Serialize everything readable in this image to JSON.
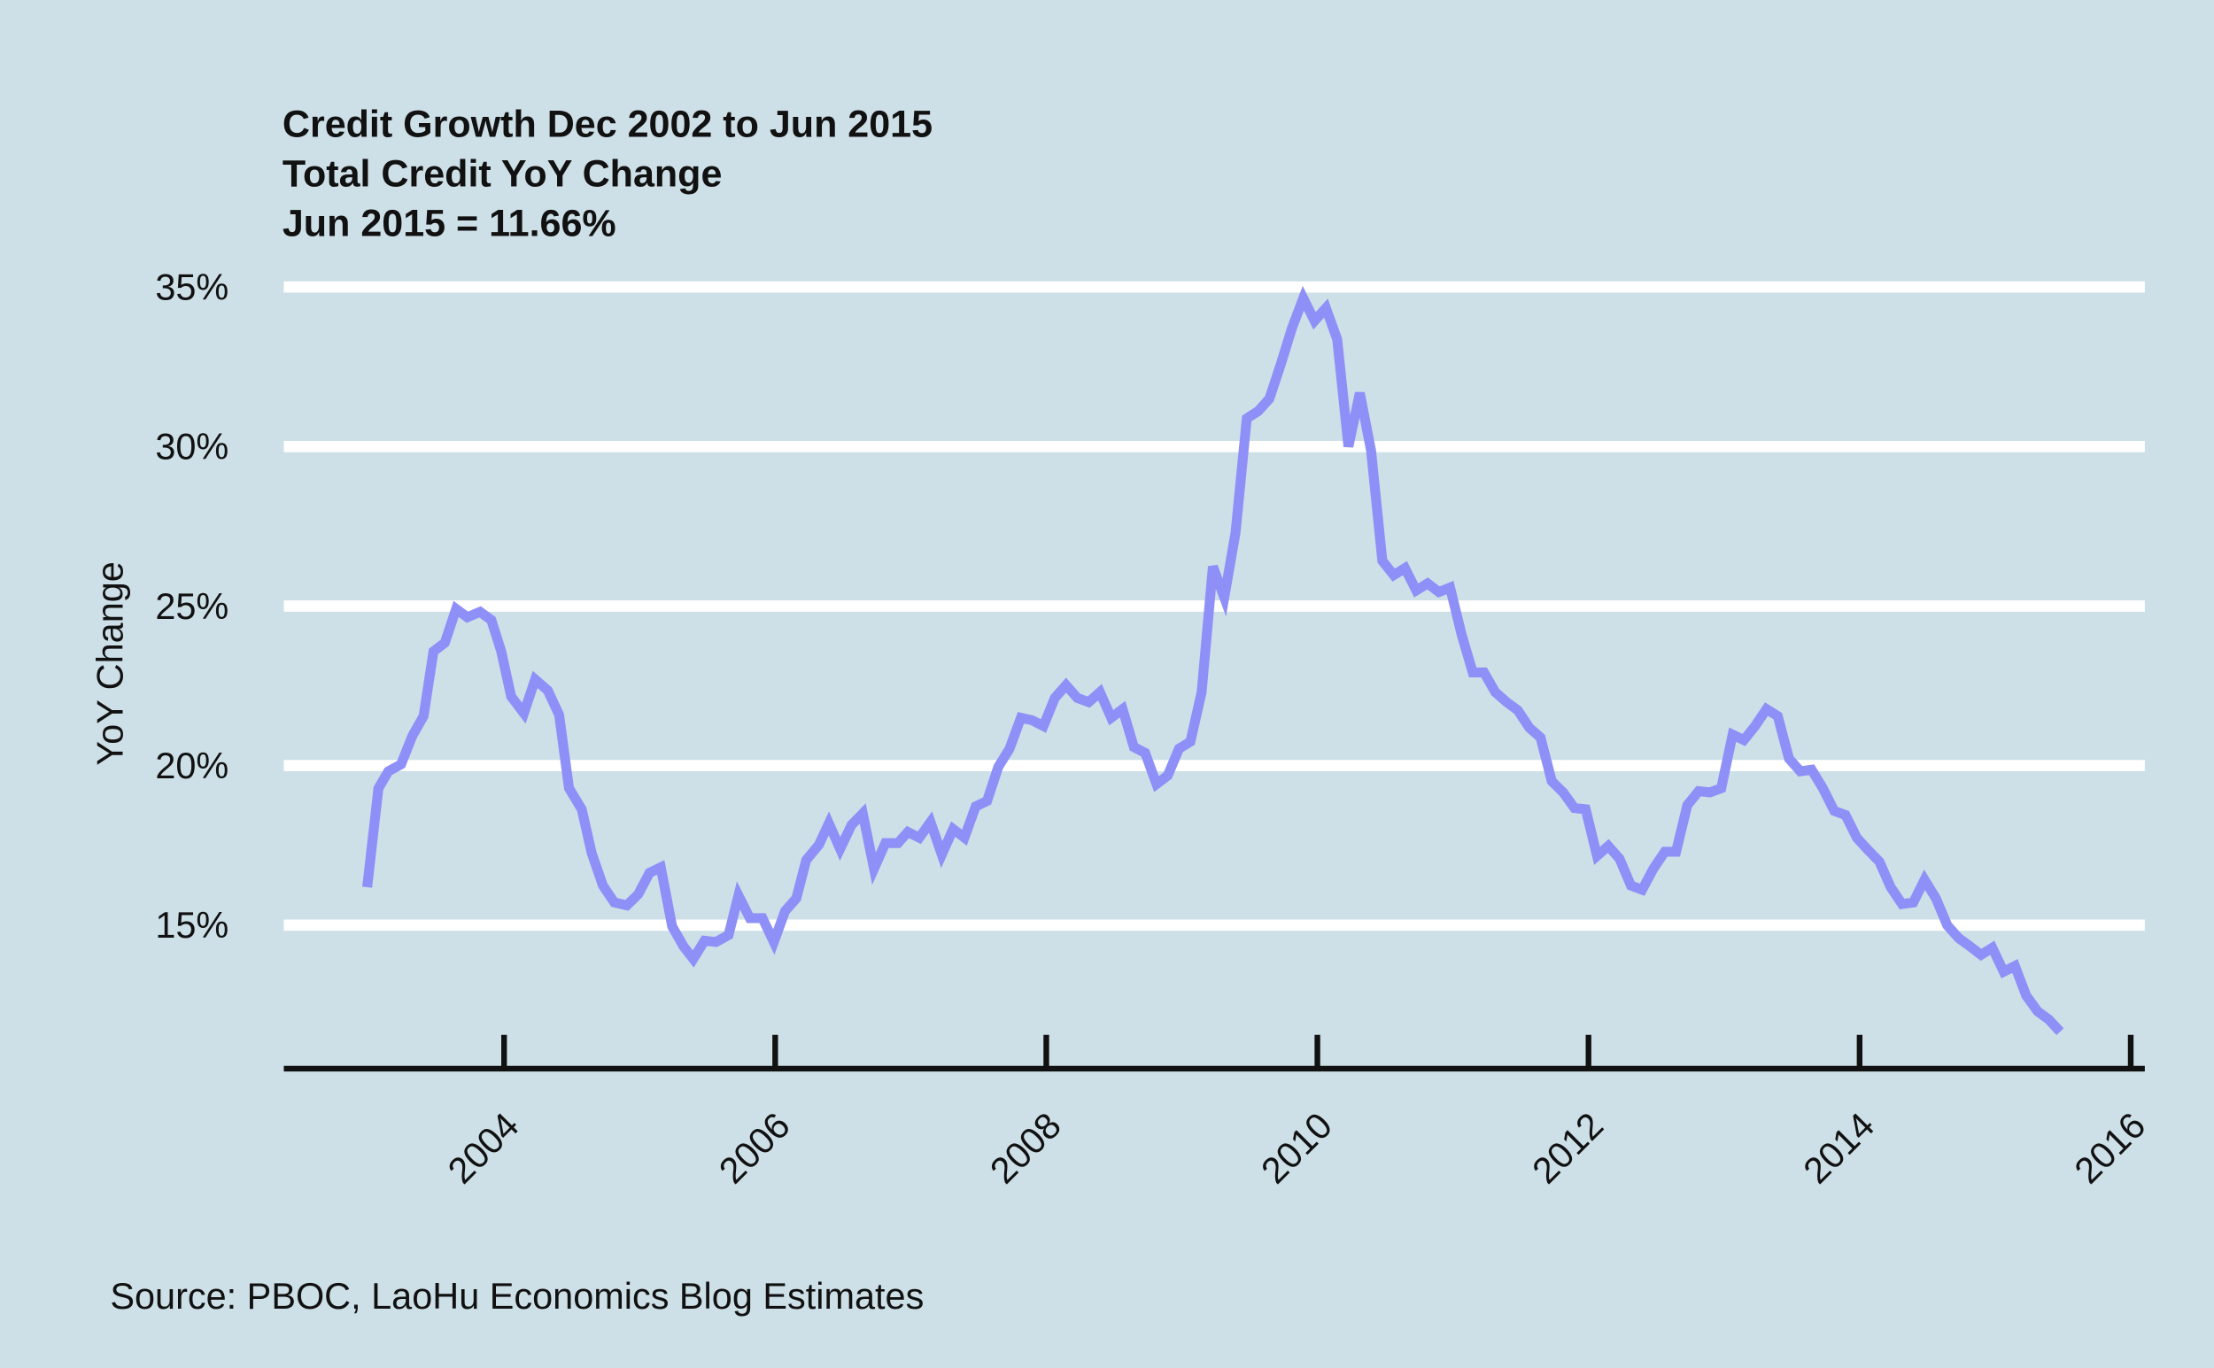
{
  "chart_data": {
    "type": "line",
    "title": "Credit Growth Dec 2002 to Jun 2015",
    "subtitle": "Total Credit YoY Change",
    "annotation": "Jun 2015 = 11.66%",
    "y_label": "YoY Change",
    "source": "Source: PBOC, LaoHu Economics Blog Estimates",
    "xlim": [
      2002.375,
      2016.104
    ],
    "xticks": [
      2004,
      2006,
      2008,
      2010,
      2012,
      2014,
      2016
    ],
    "ylim": [
      10.5,
      35.5
    ],
    "yticks": [
      {
        "value": 15,
        "label": "15%"
      },
      {
        "value": 20,
        "label": "20%"
      },
      {
        "value": 25,
        "label": "25%"
      },
      {
        "value": 30,
        "label": "30%"
      },
      {
        "value": 35,
        "label": "35%"
      }
    ],
    "grid": true,
    "series": [
      {
        "name": "Total Credit YoY Change",
        "color": "#8f8ff8",
        "x": [
          2002.99,
          2003.073,
          2003.146,
          2003.24,
          2003.323,
          2003.406,
          2003.479,
          2003.563,
          2003.646,
          2003.729,
          2003.823,
          2003.906,
          2003.979,
          2004.052,
          2004.146,
          2004.229,
          2004.323,
          2004.406,
          2004.479,
          2004.573,
          2004.646,
          2004.729,
          2004.813,
          2004.906,
          2004.99,
          2005.073,
          2005.156,
          2005.24,
          2005.323,
          2005.396,
          2005.479,
          2005.563,
          2005.656,
          2005.729,
          2005.813,
          2005.906,
          2005.99,
          2006.073,
          2006.156,
          2006.229,
          2006.323,
          2006.396,
          2006.479,
          2006.563,
          2006.646,
          2006.729,
          2006.813,
          2006.906,
          2006.979,
          2007.063,
          2007.146,
          2007.229,
          2007.313,
          2007.396,
          2007.479,
          2007.563,
          2007.646,
          2007.729,
          2007.813,
          2007.896,
          2007.979,
          2008.063,
          2008.146,
          2008.229,
          2008.313,
          2008.396,
          2008.479,
          2008.563,
          2008.646,
          2008.729,
          2008.813,
          2008.896,
          2008.979,
          2009.063,
          2009.146,
          2009.229,
          2009.313,
          2009.396,
          2009.479,
          2009.563,
          2009.646,
          2009.729,
          2009.813,
          2009.896,
          2009.979,
          2010.063,
          2010.146,
          2010.229,
          2010.313,
          2010.396,
          2010.479,
          2010.563,
          2010.646,
          2010.729,
          2010.813,
          2010.896,
          2010.979,
          2011.063,
          2011.146,
          2011.229,
          2011.313,
          2011.396,
          2011.479,
          2011.563,
          2011.646,
          2011.729,
          2011.813,
          2011.896,
          2011.979,
          2012.063,
          2012.146,
          2012.229,
          2012.313,
          2012.396,
          2012.479,
          2012.563,
          2012.646,
          2012.729,
          2012.813,
          2012.896,
          2012.979,
          2013.063,
          2013.146,
          2013.229,
          2013.313,
          2013.396,
          2013.479,
          2013.563,
          2013.646,
          2013.729,
          2013.813,
          2013.896,
          2013.979,
          2014.063,
          2014.146,
          2014.229,
          2014.313,
          2014.396,
          2014.479,
          2014.563,
          2014.646,
          2014.729,
          2014.813,
          2014.896,
          2014.979,
          2015.063,
          2015.146,
          2015.229,
          2015.313,
          2015.396,
          2015.479
        ],
        "values": [
          16.19,
          19.29,
          19.82,
          20.04,
          20.93,
          21.55,
          23.58,
          23.85,
          24.91,
          24.65,
          24.82,
          24.56,
          23.58,
          22.17,
          21.64,
          22.7,
          22.35,
          21.59,
          19.29,
          18.63,
          17.26,
          16.24,
          15.71,
          15.62,
          15.97,
          16.64,
          16.81,
          14.96,
          14.34,
          13.94,
          14.51,
          14.47,
          14.69,
          15.93,
          15.22,
          15.22,
          14.47,
          15.44,
          15.84,
          17.04,
          17.52,
          18.19,
          17.39,
          18.14,
          18.5,
          16.77,
          17.57,
          17.57,
          17.92,
          17.74,
          18.23,
          17.21,
          18.01,
          17.74,
          18.72,
          18.89,
          19.96,
          20.53,
          21.5,
          21.42,
          21.24,
          22.12,
          22.52,
          22.12,
          21.99,
          22.3,
          21.5,
          21.77,
          20.58,
          20.4,
          19.42,
          19.69,
          20.53,
          20.75,
          22.3,
          26.24,
          25.27,
          27.3,
          30.88,
          31.11,
          31.5,
          32.57,
          33.72,
          34.65,
          33.94,
          34.34,
          33.36,
          30.0,
          31.68,
          29.87,
          26.42,
          25.97,
          26.19,
          25.49,
          25.71,
          25.44,
          25.58,
          24.12,
          22.92,
          22.92,
          22.3,
          21.99,
          21.73,
          21.19,
          20.88,
          19.51,
          19.16,
          18.67,
          18.63,
          17.17,
          17.48,
          17.08,
          16.24,
          16.11,
          16.77,
          17.3,
          17.3,
          18.76,
          19.2,
          19.16,
          19.29,
          20.97,
          20.8,
          21.24,
          21.77,
          21.55,
          20.22,
          19.82,
          19.87,
          19.29,
          18.58,
          18.45,
          17.74,
          17.35,
          16.99,
          16.19,
          15.66,
          15.71,
          16.42,
          15.84,
          15.0,
          14.6,
          14.34,
          14.07,
          14.29,
          13.54,
          13.72,
          12.79,
          12.3,
          12.04,
          11.66
        ]
      }
    ]
  }
}
